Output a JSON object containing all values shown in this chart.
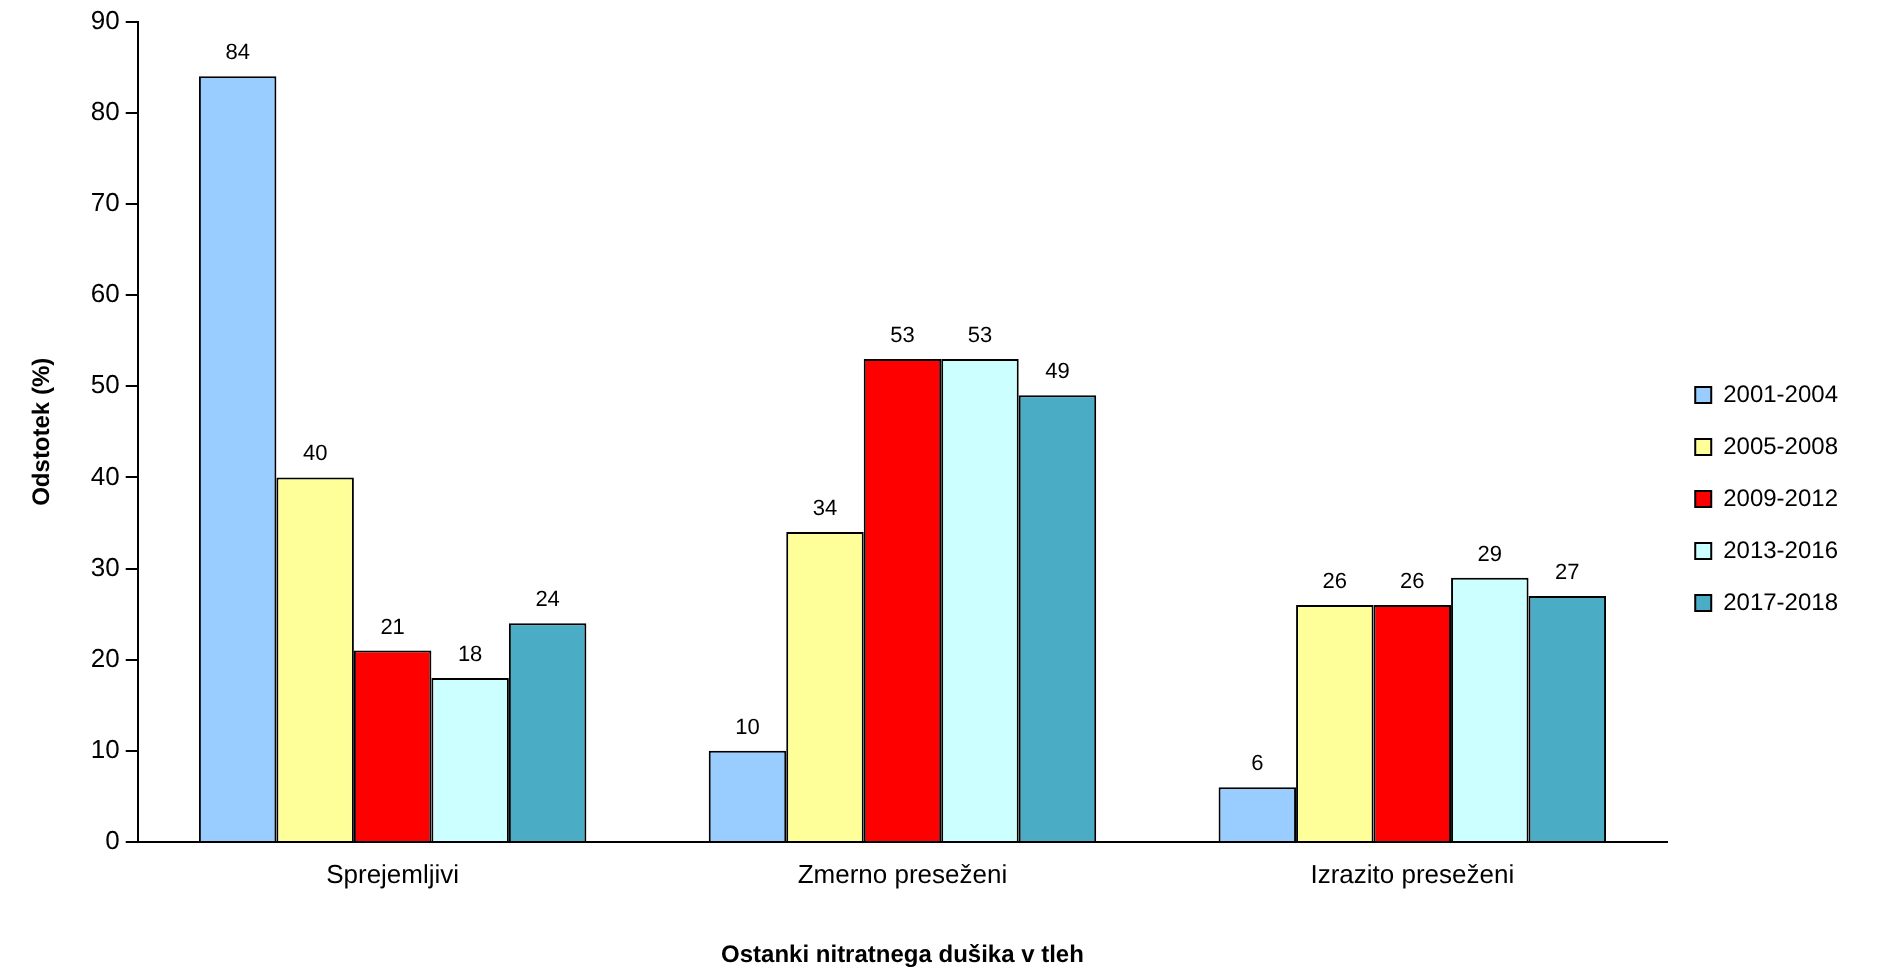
{
  "chart_data": {
    "type": "bar",
    "xlabel": "Ostanki nitratnega dušika v tleh",
    "ylabel": "Odstotek (%)",
    "categories": [
      "Sprejemljivi",
      "Zmerno preseženi",
      "Izrazito preseženi"
    ],
    "series": [
      {
        "name": "2001-2004",
        "color": "#99ccff",
        "values": [
          84,
          10,
          6
        ]
      },
      {
        "name": "2005-2008",
        "color": "#ffff99",
        "values": [
          40,
          34,
          26
        ]
      },
      {
        "name": "2009-2012",
        "color": "#ff0000",
        "values": [
          21,
          53,
          26
        ]
      },
      {
        "name": "2013-2016",
        "color": "#ccffff",
        "values": [
          18,
          53,
          29
        ]
      },
      {
        "name": "2017-2018",
        "color": "#4bacc6",
        "values": [
          24,
          49,
          27
        ]
      }
    ],
    "ylim": [
      0,
      90
    ],
    "yticks": [
      0,
      10,
      20,
      30,
      40,
      50,
      60,
      70,
      80,
      90
    ],
    "grid": false,
    "legend": "right",
    "data_labels": true
  }
}
